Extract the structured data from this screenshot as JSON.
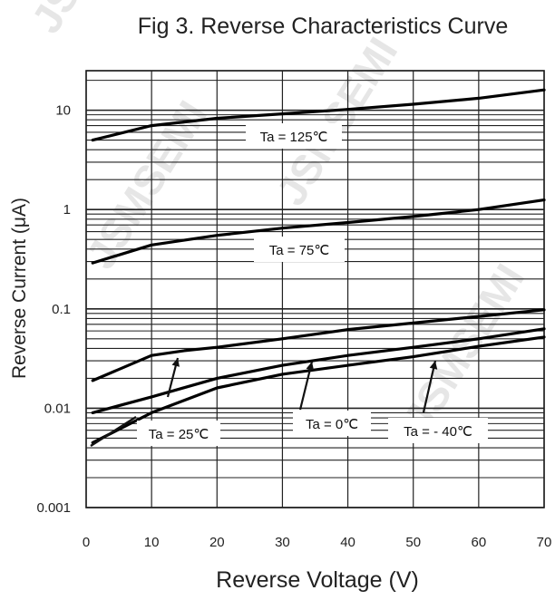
{
  "chart_data": {
    "type": "line",
    "title": "Fig 3. Reverse Characteristics Curve",
    "xlabel": "Reverse Voltage (V)",
    "ylabel": "Reverse Current (μA)",
    "x_scale": "linear",
    "y_scale": "log",
    "xlim": [
      0,
      70
    ],
    "ylim": [
      0.001,
      25
    ],
    "x_ticks": [
      "0",
      "10",
      "20",
      "30",
      "40",
      "50",
      "60",
      "70"
    ],
    "y_ticks": [
      {
        "label": "10",
        "value": 10
      },
      {
        "label": "1",
        "value": 1
      },
      {
        "label": "0.1",
        "value": 0.1
      },
      {
        "label": "0.01",
        "value": 0.01
      },
      {
        "label": "0.001",
        "value": 0.001
      }
    ],
    "grid": true,
    "line_color": "#000000",
    "watermark": "JSMSEMI",
    "series": [
      {
        "name": "Ta = 125℃",
        "x": [
          1,
          10,
          20,
          30,
          40,
          50,
          60,
          70
        ],
        "y": [
          5.0,
          7.0,
          8.3,
          9.2,
          10.2,
          11.5,
          13.2,
          16.0
        ]
      },
      {
        "name": "Ta = 75℃",
        "x": [
          1,
          10,
          20,
          30,
          40,
          50,
          60,
          70
        ],
        "y": [
          0.29,
          0.44,
          0.55,
          0.65,
          0.74,
          0.85,
          1.0,
          1.25
        ]
      },
      {
        "name": "Ta = 25℃",
        "x": [
          1,
          10,
          15,
          20,
          30,
          40,
          50,
          60,
          70
        ],
        "y": [
          0.019,
          0.034,
          0.038,
          0.041,
          0.05,
          0.062,
          0.072,
          0.084,
          0.098
        ]
      },
      {
        "name": "Ta = 0℃",
        "x": [
          1,
          10,
          20,
          30,
          40,
          50,
          60,
          70
        ],
        "y": [
          0.009,
          0.013,
          0.02,
          0.027,
          0.034,
          0.041,
          0.05,
          0.063
        ]
      },
      {
        "name": "Ta = - 40℃",
        "x": [
          1,
          10,
          20,
          30,
          40,
          50,
          60,
          70
        ],
        "y": [
          0.0045,
          0.009,
          0.016,
          0.022,
          0.027,
          0.033,
          0.042,
          0.052
        ]
      }
    ],
    "annotations": [
      {
        "text": "Ta = 125℃",
        "series": 0
      },
      {
        "text": "Ta = 75℃",
        "series": 1
      },
      {
        "text": "Ta = 25℃",
        "series": 2
      },
      {
        "text": "Ta = 0℃",
        "series": 3
      },
      {
        "text": "Ta = - 40℃",
        "series": 4
      }
    ]
  }
}
